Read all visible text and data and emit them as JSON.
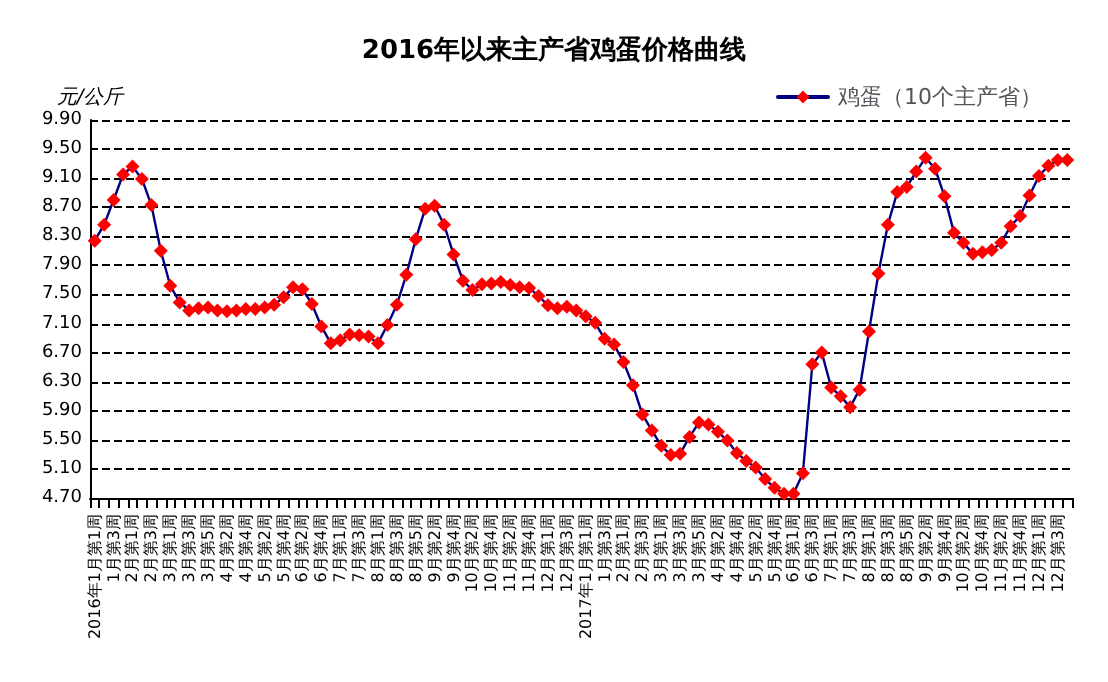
{
  "chart_data": {
    "type": "line",
    "title": "2016年以来主产省鸡蛋价格曲线",
    "ylabel": "元/公斤",
    "categories": [
      "2016年1月第1周",
      null,
      "1月第3周",
      null,
      "2月第1周",
      null,
      "2月第3周",
      null,
      "3月第1周",
      null,
      "3月第3周",
      null,
      "3月第5周",
      null,
      "4月第2周",
      null,
      "4月第4周",
      null,
      "5月第2周",
      null,
      "5月第4周",
      null,
      "6月第2周",
      null,
      "6月第4周",
      null,
      "7月第1周",
      null,
      "7月第3周",
      null,
      "8月第1周",
      null,
      "8月第3周",
      null,
      "8月第5周",
      null,
      "9月第2周",
      null,
      "9月第4周",
      null,
      "10月第2周",
      null,
      "10月第4周",
      null,
      "11月第2周",
      null,
      "11月第4周",
      null,
      "12月第1周",
      null,
      "12月第3周",
      null,
      "2017年1月第1周",
      null,
      "1月第3周",
      null,
      "2月第1周",
      null,
      "2月第3周",
      null,
      "3月第1周",
      null,
      "3月第3周",
      null,
      "3月第5周",
      null,
      "4月第2周",
      null,
      "4月第4周",
      null,
      "5月第2周",
      null,
      "5月第4周",
      null,
      "6月第1周",
      null,
      "6月第3周",
      null,
      "7月第1周",
      null,
      "7月第3周",
      null,
      "8月第1周",
      null,
      "8月第3周",
      null,
      "8月第5周",
      null,
      "9月第2周",
      null,
      "9月第4周",
      null,
      "10月第2周",
      null,
      "10月第4周",
      null,
      "11月第2周",
      null,
      "11月第4周",
      null,
      "12月第1周",
      null,
      "12月第3周",
      null
    ],
    "series": [
      {
        "name": "鸡蛋（10个主产省）",
        "color": "#ff0000",
        "values": [
          8.24,
          8.46,
          8.8,
          9.15,
          9.26,
          9.09,
          8.73,
          8.1,
          7.62,
          7.39,
          7.28,
          7.31,
          7.32,
          7.28,
          7.27,
          7.28,
          7.3,
          7.3,
          7.32,
          7.36,
          7.46,
          7.6,
          7.57,
          7.37,
          7.06,
          6.83,
          6.87,
          6.95,
          6.94,
          6.92,
          6.83,
          7.08,
          7.36,
          7.77,
          8.26,
          8.68,
          8.72,
          8.46,
          8.05,
          7.69,
          7.56,
          7.64,
          7.65,
          7.67,
          7.63,
          7.6,
          7.59,
          7.48,
          7.35,
          7.31,
          7.33,
          7.28,
          7.2,
          7.11,
          6.89,
          6.81,
          6.57,
          6.25,
          5.85,
          5.63,
          5.42,
          5.29,
          5.31,
          5.54,
          5.74,
          5.71,
          5.61,
          5.49,
          5.32,
          5.21,
          5.12,
          4.96,
          4.84,
          4.76,
          4.76,
          5.04,
          6.54,
          6.7,
          6.22,
          6.1,
          5.95,
          6.19,
          6.99,
          7.79,
          8.46,
          8.91,
          8.98,
          9.19,
          9.38,
          9.23,
          8.85,
          8.35,
          8.21,
          8.06,
          8.08,
          8.11,
          8.21,
          8.44,
          8.58,
          8.86,
          9.13,
          9.27,
          9.35,
          9.35
        ]
      }
    ],
    "ylim": [
      4.7,
      9.9
    ],
    "yticks": [
      {
        "value": 4.7,
        "label": "4.70"
      },
      {
        "value": 5.1,
        "label": "5.10"
      },
      {
        "value": 5.5,
        "label": "5.50"
      },
      {
        "value": 5.9,
        "label": "5.90"
      },
      {
        "value": 6.3,
        "label": "6.30"
      },
      {
        "value": 6.7,
        "label": "6.70"
      },
      {
        "value": 7.1,
        "label": "7.10"
      },
      {
        "value": 7.5,
        "label": "7.50"
      },
      {
        "value": 7.9,
        "label": "7.90"
      },
      {
        "value": 8.3,
        "label": "8.30"
      },
      {
        "value": 8.7,
        "label": "8.70"
      },
      {
        "value": 9.1,
        "label": "9.10"
      },
      {
        "value": 9.5,
        "label": "9.50"
      },
      {
        "value": 9.9,
        "label": "9.90"
      }
    ],
    "grid": "y",
    "legend": "top right",
    "marker": "diamond",
    "line_style": "solid"
  }
}
